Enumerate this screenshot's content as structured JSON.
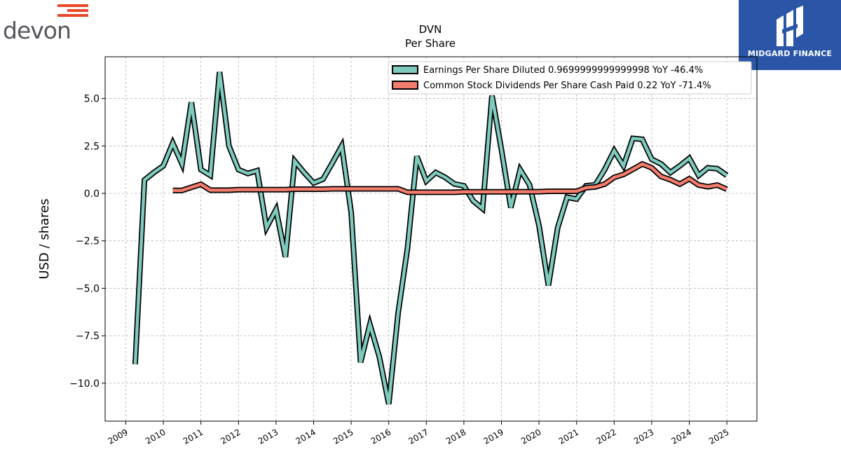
{
  "branding": {
    "company_logo_text": "devon",
    "partner_logo_text": "MIDGARD FINANCE"
  },
  "colors": {
    "eps": "#7ecbbd",
    "dividends": "#f47c6c",
    "outline": "#000000",
    "devon_orange": "#e8492a",
    "midgard_blue": "#2b56a8"
  },
  "chart_data": {
    "type": "line",
    "title": "DVN",
    "subtitle": "Per  Share",
    "xlabel": "",
    "ylabel": "USD / shares",
    "ylim": [
      -12.0,
      7.2
    ],
    "xlim": [
      2008.45,
      2025.8
    ],
    "yticks": [
      5.0,
      2.5,
      0.0,
      -2.5,
      -5.0,
      -7.5,
      -10.0
    ],
    "ytick_labels": [
      "5.0",
      "2.5",
      "0.0",
      "−2.5",
      "−5.0",
      "−7.5",
      "−10.0"
    ],
    "xticks": [
      "2009",
      "2010",
      "2011",
      "2012",
      "2013",
      "2014",
      "2015",
      "2016",
      "2017",
      "2018",
      "2019",
      "2020",
      "2021",
      "2022",
      "2023",
      "2024",
      "2025"
    ],
    "grid": true,
    "legend_position": "top-right",
    "series": [
      {
        "name": "Earnings Per Share Diluted  0.9699999999999998 YoY -46.4%",
        "x": [
          "2009-03-31",
          "2009-06-30",
          "2009-09-30",
          "2009-12-31",
          "2010-03-31",
          "2010-06-30",
          "2010-09-30",
          "2010-12-31",
          "2011-03-31",
          "2011-06-30",
          "2011-09-30",
          "2011-12-31",
          "2012-03-31",
          "2012-06-30",
          "2012-09-30",
          "2012-12-31",
          "2013-03-31",
          "2013-06-30",
          "2013-09-30",
          "2013-12-31",
          "2014-03-31",
          "2014-06-30",
          "2014-09-30",
          "2014-12-31",
          "2015-03-31",
          "2015-06-30",
          "2015-09-30",
          "2015-12-31",
          "2016-03-31",
          "2016-06-30",
          "2016-09-30",
          "2016-12-31",
          "2017-03-31",
          "2017-06-30",
          "2017-09-30",
          "2017-12-31",
          "2018-03-31",
          "2018-06-30",
          "2018-09-30",
          "2018-12-31",
          "2019-03-31",
          "2019-06-30",
          "2019-09-30",
          "2019-12-31",
          "2020-03-31",
          "2020-06-30",
          "2020-09-30",
          "2020-12-31",
          "2021-03-31",
          "2021-06-30",
          "2021-09-30",
          "2021-12-31",
          "2022-03-31",
          "2022-06-30",
          "2022-09-30",
          "2022-12-31",
          "2023-03-31",
          "2023-06-30",
          "2023-09-30",
          "2023-12-31",
          "2024-03-31",
          "2024-06-30",
          "2024-09-30",
          "2024-12-31",
          "2025-03-31"
        ],
        "values": [
          -9.0,
          0.7,
          1.1,
          1.45,
          2.65,
          1.55,
          4.8,
          1.25,
          0.95,
          6.4,
          2.5,
          1.25,
          1.05,
          1.2,
          -1.8,
          -0.85,
          -3.35,
          1.7,
          1.1,
          0.55,
          0.75,
          1.6,
          2.5,
          -1.0,
          -8.9,
          -6.9,
          -8.6,
          -11.1,
          -6.3,
          -2.9,
          1.95,
          0.65,
          1.1,
          0.85,
          0.5,
          0.4,
          -0.4,
          -0.8,
          5.15,
          2.3,
          -0.75,
          1.25,
          0.45,
          -1.7,
          -4.85,
          -1.8,
          -0.2,
          -0.3,
          0.4,
          0.45,
          1.25,
          2.25,
          1.45,
          2.9,
          2.85,
          1.8,
          1.55,
          1.1,
          1.45,
          1.85,
          0.95,
          1.35,
          1.3,
          0.95,
          null
        ],
        "color": "#7ecbbd"
      },
      {
        "name": "Common Stock Dividends Per Share Cash Paid  0.22 YoY -71.4%",
        "x": [
          "2010-03-31",
          "2010-06-30",
          "2010-09-30",
          "2010-12-31",
          "2011-03-31",
          "2011-06-30",
          "2011-09-30",
          "2011-12-31",
          "2012-03-31",
          "2012-06-30",
          "2012-09-30",
          "2012-12-31",
          "2013-03-31",
          "2013-06-30",
          "2013-09-30",
          "2013-12-31",
          "2014-03-31",
          "2014-06-30",
          "2014-09-30",
          "2014-12-31",
          "2015-03-31",
          "2015-06-30",
          "2015-09-30",
          "2015-12-31",
          "2016-03-31",
          "2016-06-30",
          "2016-09-30",
          "2016-12-31",
          "2017-03-31",
          "2017-06-30",
          "2017-09-30",
          "2017-12-31",
          "2018-03-31",
          "2018-06-30",
          "2018-09-30",
          "2018-12-31",
          "2019-03-31",
          "2019-06-30",
          "2019-09-30",
          "2019-12-31",
          "2020-03-31",
          "2020-06-30",
          "2020-09-30",
          "2020-12-31",
          "2021-03-31",
          "2021-06-30",
          "2021-09-30",
          "2021-12-31",
          "2022-03-31",
          "2022-06-30",
          "2022-09-30",
          "2022-12-31",
          "2023-03-31",
          "2023-06-30",
          "2023-09-30",
          "2023-12-31",
          "2024-03-31",
          "2024-06-30",
          "2024-09-30",
          "2024-12-31",
          "2025-03-31"
        ],
        "values": [
          0.16,
          0.16,
          0.32,
          0.48,
          0.17,
          0.17,
          0.17,
          0.2,
          0.2,
          0.2,
          0.2,
          0.2,
          0.2,
          0.22,
          0.22,
          0.22,
          0.22,
          0.24,
          0.24,
          0.24,
          0.24,
          0.24,
          0.24,
          0.24,
          0.24,
          0.06,
          0.06,
          0.06,
          0.06,
          0.06,
          0.06,
          0.08,
          0.08,
          0.08,
          0.08,
          0.08,
          0.09,
          0.09,
          0.09,
          0.09,
          0.11,
          0.11,
          0.11,
          0.11,
          0.3,
          0.34,
          0.49,
          0.84,
          1.0,
          1.27,
          1.55,
          1.35,
          0.89,
          0.72,
          0.49,
          0.77,
          0.44,
          0.35,
          0.44,
          0.22,
          null
        ],
        "color": "#f47c6c"
      }
    ]
  }
}
